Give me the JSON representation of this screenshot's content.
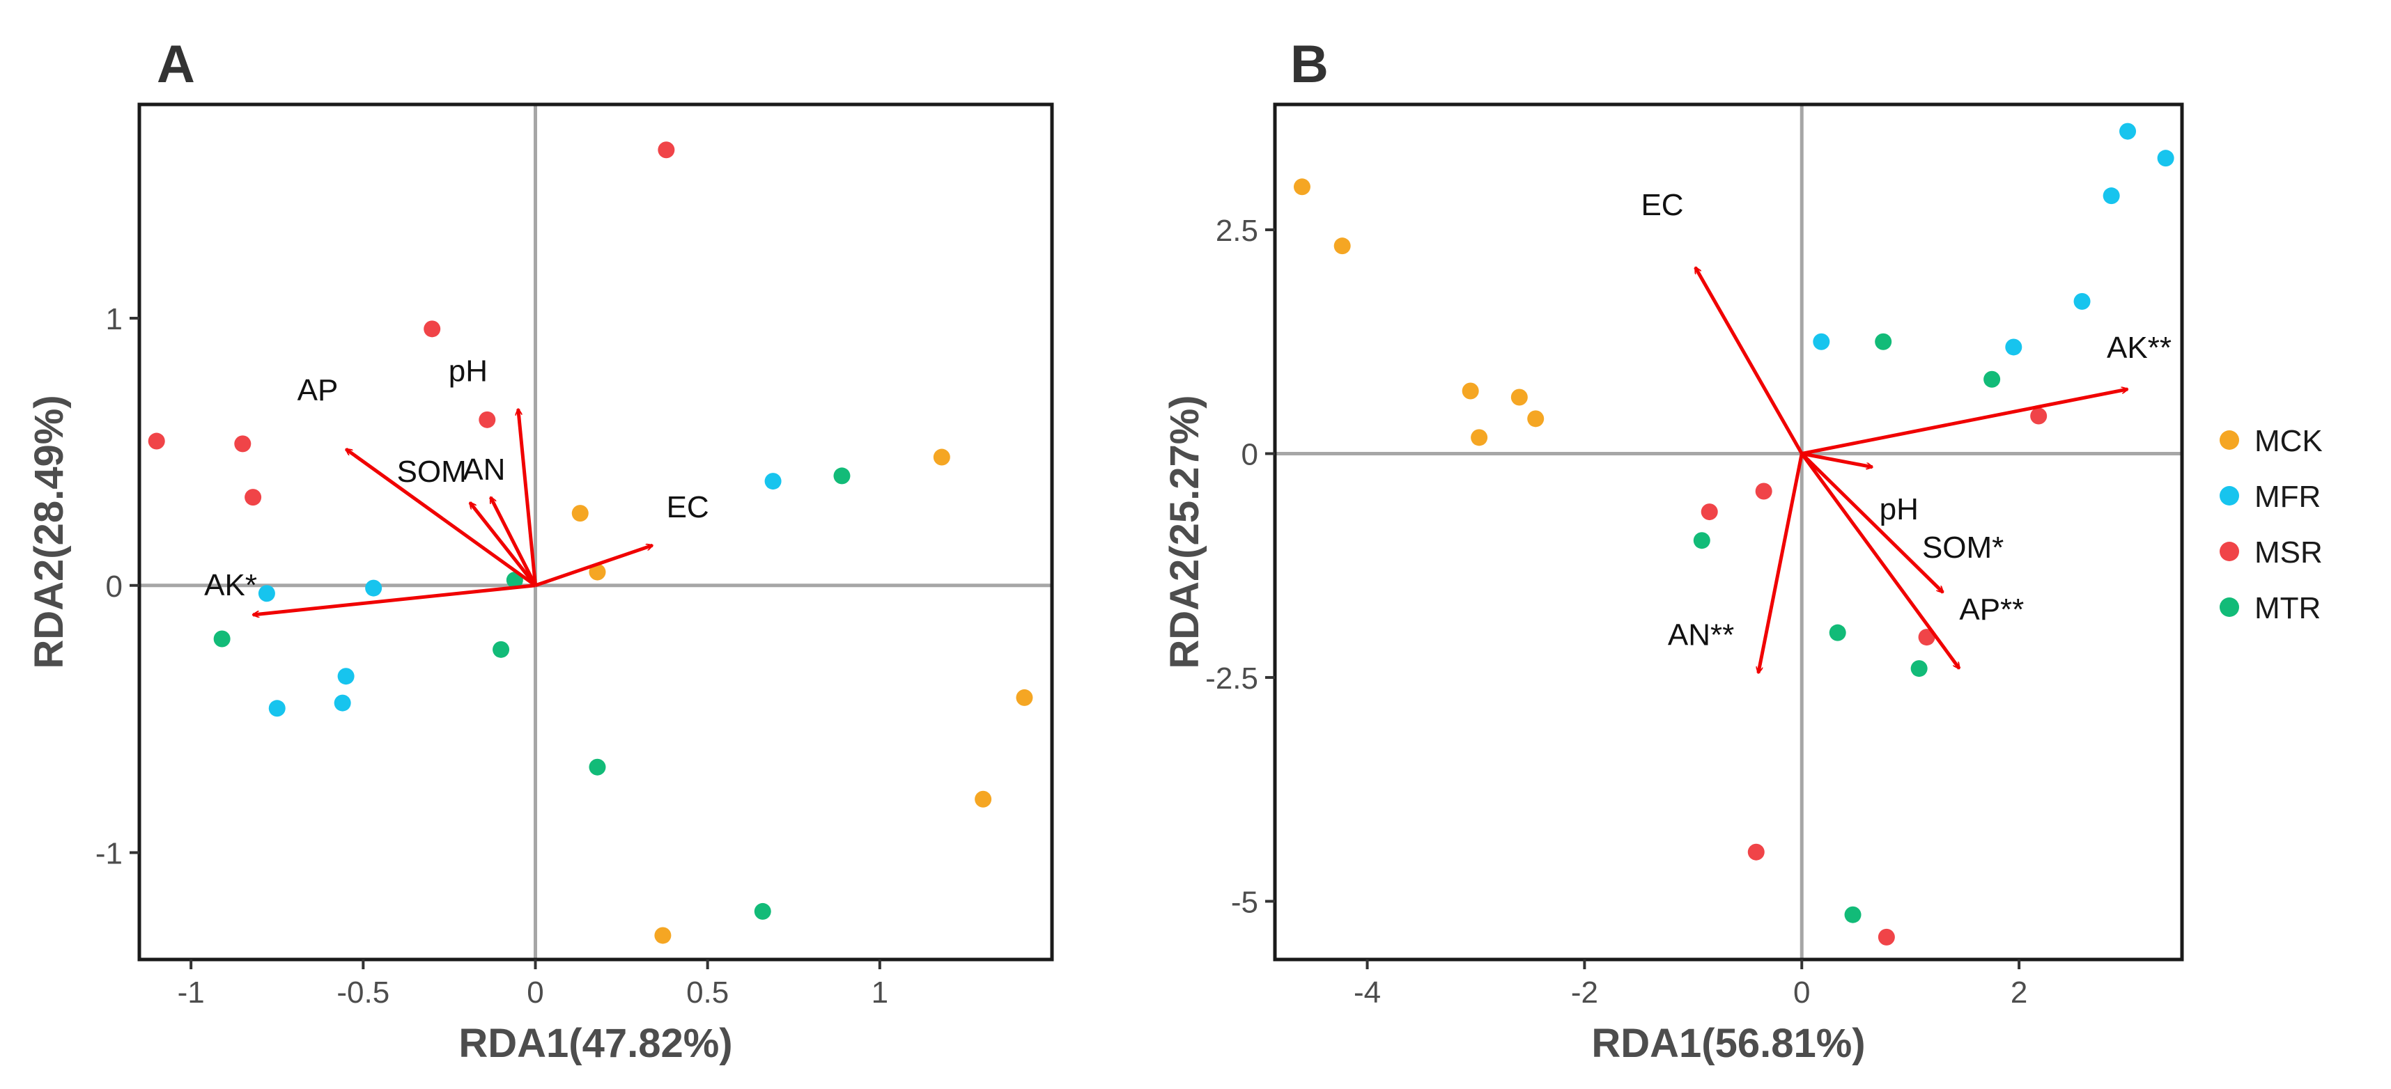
{
  "legend": {
    "entries": [
      {
        "label": "MCK",
        "color": "#F5A623"
      },
      {
        "label": "MFR",
        "color": "#17C4EE"
      },
      {
        "label": "MSR",
        "color": "#F04448"
      },
      {
        "label": "MTR",
        "color": "#12BB78"
      }
    ]
  },
  "chart_data": [
    {
      "type": "scatter",
      "panel": "A",
      "xlabel": "RDA1(47.82%)",
      "ylabel": "RDA2(28.49%)",
      "xlim": [
        -1.15,
        1.5
      ],
      "ylim": [
        -1.4,
        1.8
      ],
      "xticks": [
        -1,
        -0.5,
        0,
        0.5,
        1
      ],
      "xtick_labels": [
        "-1",
        "-0.5",
        "0",
        "0.5",
        "1"
      ],
      "yticks": [
        -1,
        0,
        1
      ],
      "ytick_labels": [
        "-1",
        "0",
        "1"
      ],
      "zero_lines": true,
      "grid": false,
      "series": [
        {
          "name": "MCK",
          "color": "#F5A623",
          "points": [
            [
              0.13,
              0.27
            ],
            [
              0.18,
              0.05
            ],
            [
              1.18,
              0.48
            ],
            [
              1.42,
              -0.42
            ],
            [
              1.3,
              -0.8
            ],
            [
              0.37,
              -1.31
            ]
          ]
        },
        {
          "name": "MFR",
          "color": "#17C4EE",
          "points": [
            [
              -0.78,
              -0.03
            ],
            [
              -0.47,
              -0.01
            ],
            [
              -0.55,
              -0.34
            ],
            [
              -0.75,
              -0.46
            ],
            [
              -0.56,
              -0.44
            ],
            [
              0.69,
              0.39
            ]
          ]
        },
        {
          "name": "MSR",
          "color": "#F04448",
          "points": [
            [
              0.38,
              1.63
            ],
            [
              -0.3,
              0.96
            ],
            [
              -0.14,
              0.62
            ],
            [
              -1.1,
              0.54
            ],
            [
              -0.85,
              0.53
            ],
            [
              -0.82,
              0.33
            ]
          ]
        },
        {
          "name": "MTR",
          "color": "#12BB78",
          "points": [
            [
              -0.06,
              0.02
            ],
            [
              -0.91,
              -0.2
            ],
            [
              -0.1,
              -0.24
            ],
            [
              0.18,
              -0.68
            ],
            [
              0.66,
              -1.22
            ],
            [
              0.89,
              0.41
            ]
          ]
        }
      ],
      "vectors": [
        {
          "label": "AK*",
          "x": -0.82,
          "y": -0.11
        },
        {
          "label": "AP",
          "x": -0.55,
          "y": 0.51
        },
        {
          "label": "SOM",
          "x": -0.19,
          "y": 0.31
        },
        {
          "label": "AN",
          "x": -0.13,
          "y": 0.33
        },
        {
          "label": "pH",
          "x": -0.05,
          "y": 0.66
        },
        {
          "label": "EC",
          "x": 0.34,
          "y": 0.15
        }
      ]
    },
    {
      "type": "scatter",
      "panel": "B",
      "xlabel": "RDA1(56.81%)",
      "ylabel": "RDA2(25.27%)",
      "xlim": [
        -4.85,
        3.5
      ],
      "ylim": [
        -5.65,
        3.9
      ],
      "xticks": [
        -4,
        -2,
        0,
        2
      ],
      "xtick_labels": [
        "-4",
        "-2",
        "0",
        "2"
      ],
      "yticks": [
        -5,
        -2.5,
        0,
        2.5
      ],
      "ytick_labels": [
        "-5",
        "-2.5",
        "0",
        "2.5"
      ],
      "zero_lines": true,
      "grid": false,
      "series": [
        {
          "name": "MCK",
          "color": "#F5A623",
          "points": [
            [
              -4.6,
              2.98
            ],
            [
              -4.23,
              2.32
            ],
            [
              -3.05,
              0.7
            ],
            [
              -2.6,
              0.63
            ],
            [
              -2.45,
              0.39
            ],
            [
              -2.97,
              0.18
            ]
          ]
        },
        {
          "name": "MFR",
          "color": "#17C4EE",
          "points": [
            [
              3.0,
              3.6
            ],
            [
              3.35,
              3.3
            ],
            [
              2.85,
              2.88
            ],
            [
              2.58,
              1.7
            ],
            [
              1.95,
              1.19
            ],
            [
              0.18,
              1.25
            ]
          ]
        },
        {
          "name": "MSR",
          "color": "#F04448",
          "points": [
            [
              2.18,
              0.42
            ],
            [
              -0.85,
              -0.65
            ],
            [
              -0.35,
              -0.42
            ],
            [
              1.15,
              -2.05
            ],
            [
              -0.42,
              -4.45
            ],
            [
              0.78,
              -5.4
            ]
          ]
        },
        {
          "name": "MTR",
          "color": "#12BB78",
          "points": [
            [
              0.75,
              1.25
            ],
            [
              1.75,
              0.83
            ],
            [
              -0.92,
              -0.97
            ],
            [
              0.33,
              -2.0
            ],
            [
              1.08,
              -2.4
            ],
            [
              0.47,
              -5.15
            ]
          ]
        }
      ],
      "vectors": [
        {
          "label": "EC",
          "x": -0.98,
          "y": 2.08
        },
        {
          "label": "AK**",
          "x": 3.0,
          "y": 0.72
        },
        {
          "label": "pH",
          "x": 0.65,
          "y": -0.15
        },
        {
          "label": "SOM*",
          "x": 1.3,
          "y": -1.55
        },
        {
          "label": "AP**",
          "x": 1.45,
          "y": -2.4
        },
        {
          "label": "AN**",
          "x": -0.4,
          "y": -2.45
        }
      ]
    }
  ]
}
